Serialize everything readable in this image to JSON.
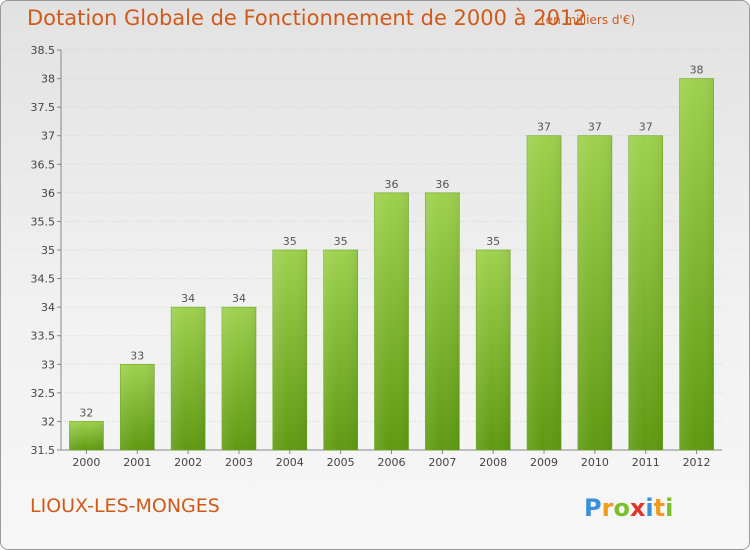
{
  "header": {
    "title": "Dotation Globale de Fonctionnement de 2000 à 2012",
    "subtitle": "(en milliers d'€)"
  },
  "footer": {
    "commune": "LIOUX-LES-MONGES",
    "logo_text": "Proxiti"
  },
  "colors": {
    "title": "#d05a1a",
    "bar_top": "#9ed14e",
    "bar_bottom": "#5f9a12"
  },
  "chart_data": {
    "type": "bar",
    "title": "Dotation Globale de Fonctionnement de 2000 à 2012",
    "subtitle": "(en milliers d'€)",
    "categories": [
      "2000",
      "2001",
      "2002",
      "2003",
      "2004",
      "2005",
      "2006",
      "2007",
      "2008",
      "2009",
      "2010",
      "2011",
      "2012"
    ],
    "values": [
      32,
      33,
      34,
      34,
      35,
      35,
      36,
      36,
      35,
      37,
      37,
      37,
      38
    ],
    "data_labels": [
      "32",
      "33",
      "34",
      "34",
      "35",
      "35",
      "36",
      "36",
      "35",
      "37",
      "37",
      "37",
      "38"
    ],
    "ylim": [
      31.5,
      38.5
    ],
    "yticks": [
      31.5,
      32,
      32.5,
      33,
      33.5,
      34,
      34.5,
      35,
      35.5,
      36,
      36.5,
      37,
      37.5,
      38,
      38.5
    ],
    "ytick_labels": [
      "31.5",
      "32",
      "32.5",
      "33",
      "33.5",
      "34",
      "34.5",
      "35",
      "35.5",
      "36",
      "36.5",
      "37",
      "37.5",
      "38",
      "38.5"
    ],
    "grid": true,
    "xlabel": "",
    "ylabel": ""
  }
}
